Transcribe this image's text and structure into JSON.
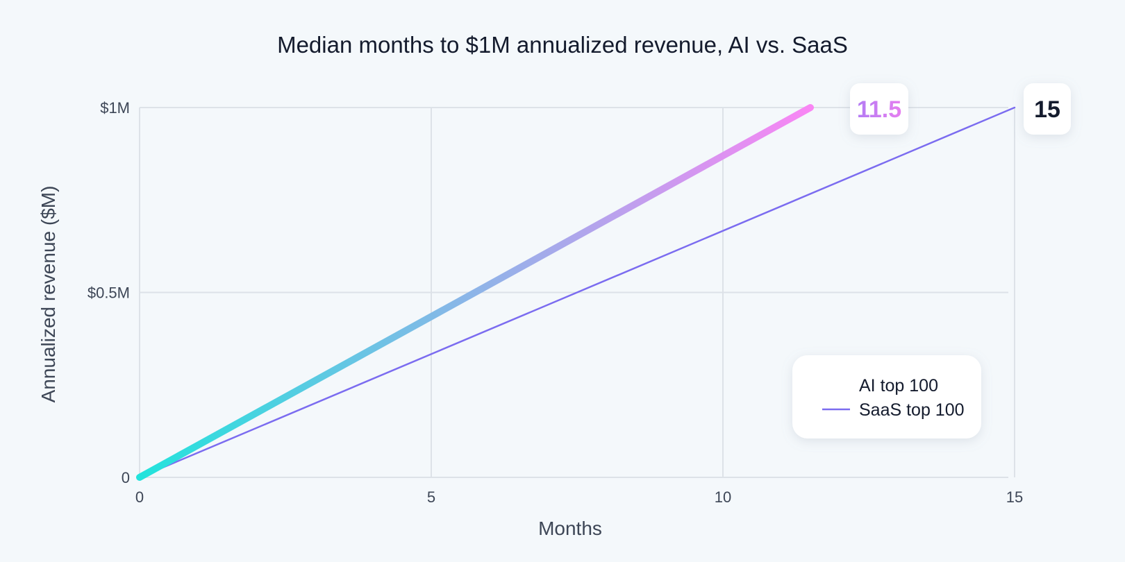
{
  "chart_data": {
    "type": "line",
    "title": "Median months to $1M annualized revenue, AI vs. SaaS",
    "xlabel": "Months",
    "ylabel": "Annualized revenue ($M)",
    "xlim": [
      0,
      15
    ],
    "ylim": [
      0,
      1
    ],
    "x_ticks": [
      0,
      5,
      10,
      15
    ],
    "x_tick_labels": [
      "0",
      "5",
      "10",
      "15"
    ],
    "y_ticks": [
      0,
      0.5,
      1
    ],
    "y_tick_labels": [
      "0",
      "$0.5M",
      "$1M"
    ],
    "grid": true,
    "legend_position": "bottom-right",
    "series": [
      {
        "name": "AI top 100",
        "x": [
          0,
          11.5
        ],
        "y": [
          0,
          1
        ],
        "end_label": "11.5",
        "color_start": "#22e3dc",
        "color_end": "#f986f4"
      },
      {
        "name": "SaaS top 100",
        "x": [
          0,
          15
        ],
        "y": [
          0,
          1
        ],
        "end_label": "15",
        "color": "#7b6cf0"
      }
    ]
  }
}
